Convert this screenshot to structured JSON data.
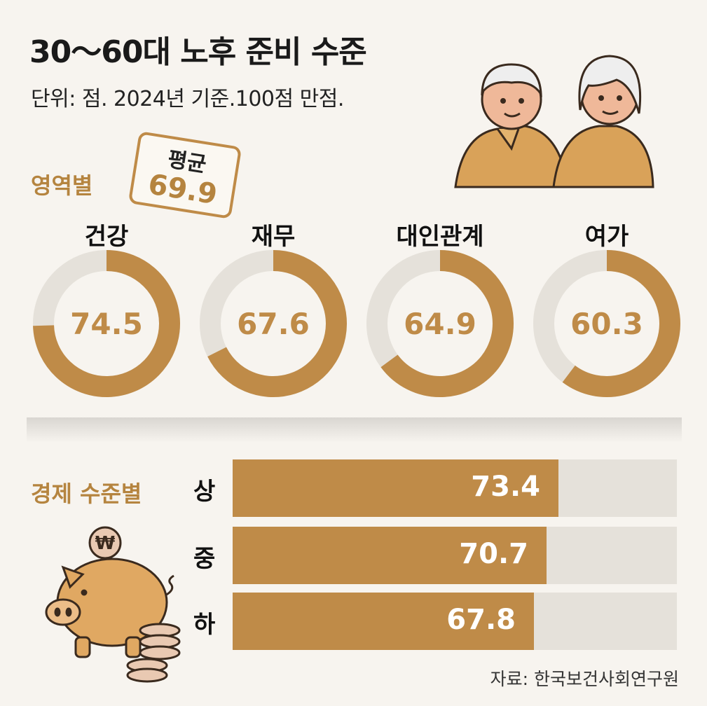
{
  "header": {
    "title": "30～60대 노후 준비 수준",
    "subtitle": "단위: 점.  2024년 기준.100점 만점."
  },
  "average": {
    "label": "평균",
    "value": "69.9"
  },
  "sections": {
    "domain_label": "영역별",
    "economy_label": "경제 수준별"
  },
  "source": "자료: 한국보건사회연구원",
  "colors": {
    "accent": "#bf8b48",
    "track": "#e5e1da",
    "background": "#f7f4ef"
  },
  "chart_data": [
    {
      "type": "pie",
      "categories": [
        "건강",
        "재무",
        "대인관계",
        "여가"
      ],
      "values": [
        74.5,
        67.6,
        64.9,
        60.3
      ],
      "max": 100,
      "value_labels": [
        "74.5",
        "67.6",
        "64.9",
        "60.3"
      ]
    },
    {
      "type": "bar",
      "categories": [
        "상",
        "중",
        "하"
      ],
      "values": [
        73.4,
        70.7,
        67.8
      ],
      "max": 100,
      "value_labels": [
        "73.4",
        "70.7",
        "67.8"
      ]
    }
  ]
}
